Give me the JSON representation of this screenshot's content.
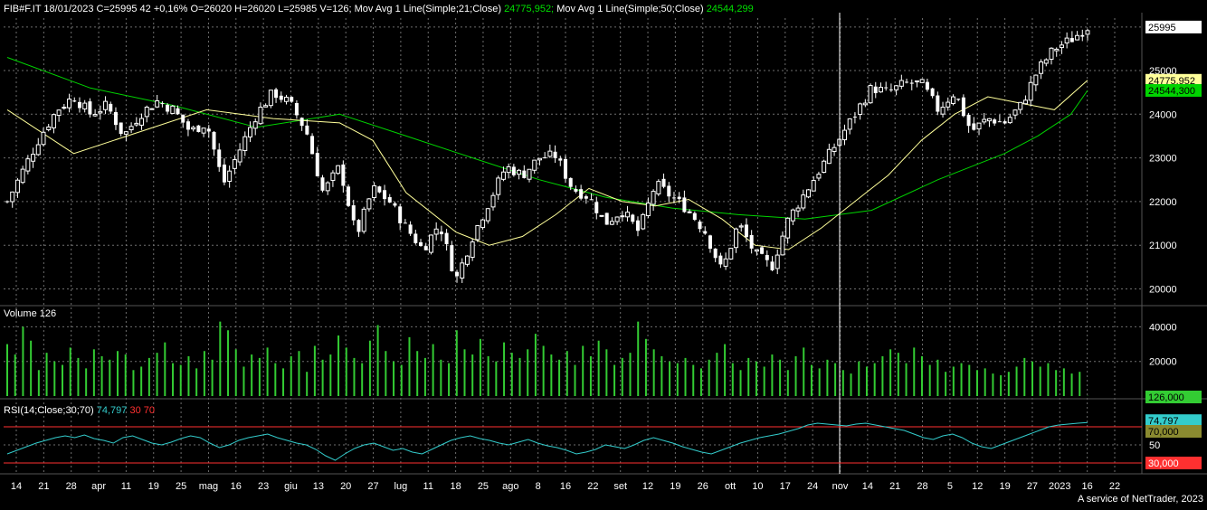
{
  "header": {
    "instrument": "FIB#F.IT 18/01/2023 C=25995 42 +0,16% O=26020 H=26020 L=25985 V=126;",
    "ma21_label": "Mov Avg 1 Line(Simple;21;Close)",
    "ma21_value": "24775,952;",
    "ma50_label": "Mov Avg 1 Line(Simple;50;Close)",
    "ma50_value": "24544,299"
  },
  "volume_panel": {
    "label": "Volume",
    "value": "126"
  },
  "rsi_panel": {
    "label": "RSI(14;Close;30;70)",
    "value": "74,797",
    "low": "30",
    "high": "70"
  },
  "footer": "A service of NetTrader, 2023",
  "colors": {
    "background": "#000000",
    "candle": "#ffffff",
    "ma21": "#ffff9a",
    "ma50": "#00d400",
    "volume": "#33cc33",
    "rsi": "#33cccc",
    "rsi_level": "#ff3030",
    "grid": "#6e6e6e"
  },
  "chart_data": [
    {
      "type": "candlestick",
      "title": "FIB#F.IT",
      "y_ticks": [
        "20000",
        "21000",
        "22000",
        "23000",
        "24000",
        "25000"
      ],
      "ylim": [
        19700,
        26200
      ],
      "last_price_tag": "25995",
      "ma21_tag": "24775,952",
      "ma50_tag": "24544,300",
      "x_ticks": [
        "14",
        "21",
        "28",
        "apr",
        "11",
        "19",
        "25",
        "mag",
        "16",
        "23",
        "giu",
        "13",
        "20",
        "27",
        "lug",
        "11",
        "18",
        "25",
        "ago",
        "8",
        "16",
        "22",
        "set",
        "12",
        "19",
        "26",
        "ott",
        "10",
        "17",
        "24",
        "nov",
        "14",
        "21",
        "28",
        "5",
        "12",
        "19",
        "27",
        "2023",
        "16",
        "22"
      ],
      "close_path": [
        [
          0,
          22000
        ],
        [
          1,
          22750
        ],
        [
          2,
          23500
        ],
        [
          3,
          24100
        ],
        [
          4,
          24400
        ],
        [
          5,
          24000
        ],
        [
          6,
          24200
        ],
        [
          7,
          23500
        ],
        [
          8,
          24000
        ],
        [
          9,
          24300
        ],
        [
          10,
          24100
        ],
        [
          11,
          23600
        ],
        [
          12,
          23800
        ],
        [
          13,
          22400
        ],
        [
          14,
          23200
        ],
        [
          15,
          24000
        ],
        [
          16,
          24500
        ],
        [
          17,
          24250
        ],
        [
          18,
          23600
        ],
        [
          19,
          22200
        ],
        [
          20,
          22800
        ],
        [
          21,
          21200
        ],
        [
          22,
          22300
        ],
        [
          23,
          22000
        ],
        [
          24,
          21400
        ],
        [
          25,
          20900
        ],
        [
          26,
          21500
        ],
        [
          27,
          20200
        ],
        [
          28,
          21200
        ],
        [
          29,
          22000
        ],
        [
          30,
          22800
        ],
        [
          31,
          22600
        ],
        [
          32,
          23000
        ],
        [
          33,
          23050
        ],
        [
          34,
          22300
        ],
        [
          35,
          22100
        ],
        [
          36,
          21500
        ],
        [
          37,
          21800
        ],
        [
          38,
          21300
        ],
        [
          39,
          22400
        ],
        [
          40,
          22100
        ],
        [
          41,
          21800
        ],
        [
          42,
          21300
        ],
        [
          43,
          20400
        ],
        [
          44,
          21500
        ],
        [
          45,
          20800
        ],
        [
          46,
          20500
        ],
        [
          47,
          21600
        ],
        [
          48,
          22200
        ],
        [
          49,
          22800
        ],
        [
          50,
          23400
        ],
        [
          51,
          24000
        ],
        [
          52,
          24600
        ],
        [
          53,
          24500
        ],
        [
          54,
          24700
        ],
        [
          55,
          24700
        ],
        [
          56,
          24100
        ],
        [
          57,
          24500
        ],
        [
          58,
          23600
        ],
        [
          59,
          23900
        ],
        [
          60,
          23800
        ],
        [
          61,
          24200
        ],
        [
          62,
          25000
        ],
        [
          63,
          25500
        ],
        [
          64,
          25700
        ],
        [
          65,
          25995
        ]
      ],
      "ma21_path": [
        [
          0,
          24100
        ],
        [
          4,
          23100
        ],
        [
          8,
          23600
        ],
        [
          12,
          24100
        ],
        [
          16,
          23900
        ],
        [
          20,
          23800
        ],
        [
          22,
          23400
        ],
        [
          24,
          22200
        ],
        [
          27,
          21300
        ],
        [
          29,
          21000
        ],
        [
          31,
          21200
        ],
        [
          33,
          21700
        ],
        [
          35,
          22300
        ],
        [
          37,
          22000
        ],
        [
          39,
          21900
        ],
        [
          41,
          22050
        ],
        [
          43,
          21600
        ],
        [
          45,
          21000
        ],
        [
          47,
          20900
        ],
        [
          49,
          21400
        ],
        [
          51,
          22000
        ],
        [
          53,
          22600
        ],
        [
          55,
          23400
        ],
        [
          57,
          24000
        ],
        [
          59,
          24400
        ],
        [
          61,
          24250
        ],
        [
          63,
          24100
        ],
        [
          65,
          24775.952
        ]
      ],
      "ma50_path": [
        [
          0,
          25300
        ],
        [
          5,
          24600
        ],
        [
          10,
          24200
        ],
        [
          15,
          23700
        ],
        [
          20,
          24000
        ],
        [
          24,
          23500
        ],
        [
          28,
          23000
        ],
        [
          32,
          22500
        ],
        [
          36,
          22100
        ],
        [
          40,
          21850
        ],
        [
          44,
          21700
        ],
        [
          48,
          21600
        ],
        [
          52,
          21800
        ],
        [
          56,
          22500
        ],
        [
          60,
          23100
        ],
        [
          62,
          23500
        ],
        [
          64,
          24000
        ],
        [
          65,
          24544.299
        ]
      ]
    },
    {
      "type": "bar",
      "title": "Volume",
      "y_ticks": [
        "20000",
        "40000"
      ],
      "ylim": [
        0,
        47000
      ],
      "last_value_tag": "126,000",
      "values": [
        30000,
        24000,
        40000,
        32000,
        15000,
        25000,
        20000,
        18000,
        28000,
        22000,
        16000,
        27000,
        23000,
        21000,
        26000,
        24000,
        15000,
        17000,
        22000,
        25000,
        31000,
        19000,
        18000,
        23000,
        16000,
        26000,
        21000,
        43000,
        38000,
        27000,
        17000,
        24000,
        22000,
        28000,
        19000,
        16000,
        23000,
        26000,
        14000,
        29000,
        21000,
        24000,
        35000,
        28000,
        22000,
        19000,
        32000,
        41000,
        26000,
        20000,
        18000,
        34000,
        26000,
        22000,
        30000,
        21000,
        19000,
        38000,
        27000,
        24000,
        33000,
        23000,
        20000,
        31000,
        25000,
        22000,
        27000,
        36000,
        29000,
        24000,
        21000,
        26000,
        18000,
        29000,
        23000,
        32000,
        27000,
        18000,
        22000,
        25000,
        43000,
        33000,
        27000,
        23000,
        20000,
        19000,
        22000,
        18000,
        16000,
        21000,
        25000,
        30000,
        19000,
        15000,
        22000,
        20000,
        17000,
        24000,
        21000,
        15000,
        23000,
        28000,
        18000,
        16000,
        21000,
        19000,
        15000,
        13000,
        20000,
        17000,
        19000,
        23000,
        27000,
        25000,
        19000,
        28000,
        23000,
        18000,
        21000,
        14000,
        17000,
        19000,
        18000,
        15000,
        16000,
        13000,
        12000,
        14000,
        17000,
        22000,
        20000,
        17000,
        19000,
        15000,
        16000,
        13000,
        14000,
        126
      ]
    },
    {
      "type": "line",
      "title": "RSI",
      "y_ticks": [
        "50"
      ],
      "ylim": [
        20,
        85
      ],
      "levels": [
        30,
        70
      ],
      "last_value_tag": "74,797",
      "level_tags": [
        "70,000",
        "30,000"
      ],
      "values": [
        40,
        44,
        48,
        52,
        55,
        58,
        60,
        58,
        61,
        57,
        55,
        52,
        58,
        60,
        56,
        52,
        50,
        53,
        57,
        60,
        58,
        52,
        47,
        50,
        55,
        58,
        60,
        62,
        58,
        55,
        52,
        50,
        45,
        38,
        33,
        40,
        46,
        50,
        52,
        48,
        44,
        46,
        42,
        40,
        45,
        50,
        55,
        58,
        60,
        57,
        55,
        52,
        50,
        53,
        56,
        52,
        49,
        47,
        44,
        40,
        42,
        45,
        50,
        48,
        46,
        50,
        55,
        58,
        55,
        52,
        48,
        45,
        42,
        40,
        44,
        48,
        52,
        55,
        58,
        60,
        62,
        65,
        68,
        72,
        74,
        73,
        72,
        71,
        73,
        74,
        72,
        70,
        68,
        66,
        62,
        58,
        56,
        60,
        62,
        58,
        52,
        48,
        46,
        50,
        54,
        58,
        62,
        66,
        70,
        72,
        73,
        74,
        74.797
      ]
    }
  ]
}
